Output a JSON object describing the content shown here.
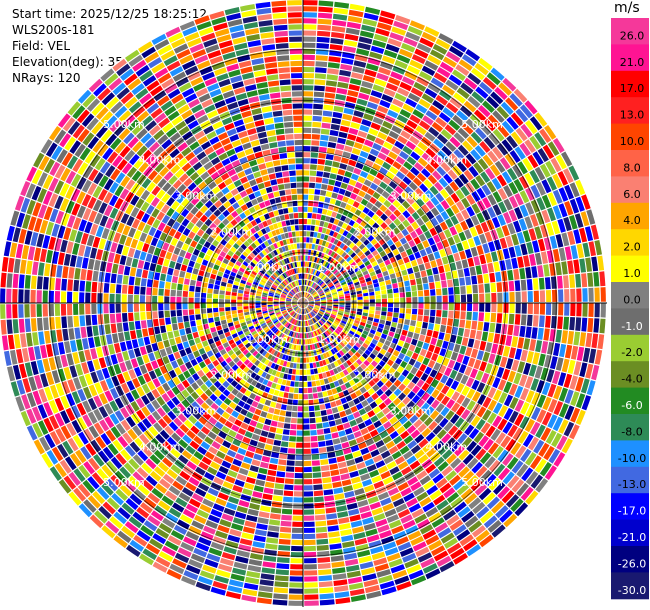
{
  "header": {
    "start_time": "Start time: 2025/12/25 18:25:12",
    "instrument": "WLS200s-181",
    "field": "Field: VEL",
    "elevation": "Elevation(deg): 35.00",
    "nrays": "NRays: 120"
  },
  "colorbar": {
    "unit": "m/s",
    "ticks": [
      "26.0",
      "21.0",
      "17.0",
      "13.0",
      "10.0",
      "8.0",
      "6.0",
      "4.0",
      "2.0",
      "1.0",
      "0.0",
      "-1.0",
      "-2.0",
      "-4.0",
      "-6.0",
      "-8.0",
      "-10.0",
      "-13.0",
      "-17.0",
      "-21.0",
      "-26.0",
      "-30.0"
    ],
    "colors": [
      "#f5389a",
      "#ff1493",
      "#ff0000",
      "#ff2020",
      "#ff4500",
      "#ff6347",
      "#fa8072",
      "#ffa500",
      "#ffd700",
      "#ffff00",
      "#808080",
      "#6e6e6e",
      "#9acd32",
      "#6b8e23",
      "#228b22",
      "#2e8b57",
      "#1e90ff",
      "#4169e1",
      "#0000ff",
      "#0000cd",
      "#000080",
      "#191970"
    ]
  },
  "chart_data": {
    "type": "heatmap",
    "projection": "polar PPI",
    "field": "VEL",
    "units": "m/s",
    "nrays": 120,
    "range_rings_km": [
      1.0,
      2.0,
      3.0,
      4.0,
      5.0
    ],
    "ring_labels": [
      "1.00km",
      "2.00km",
      "3.00km",
      "4.00km",
      "5.00km"
    ],
    "max_range_km": 6.0,
    "value_range": [
      -30.0,
      26.0
    ],
    "grid": true
  }
}
